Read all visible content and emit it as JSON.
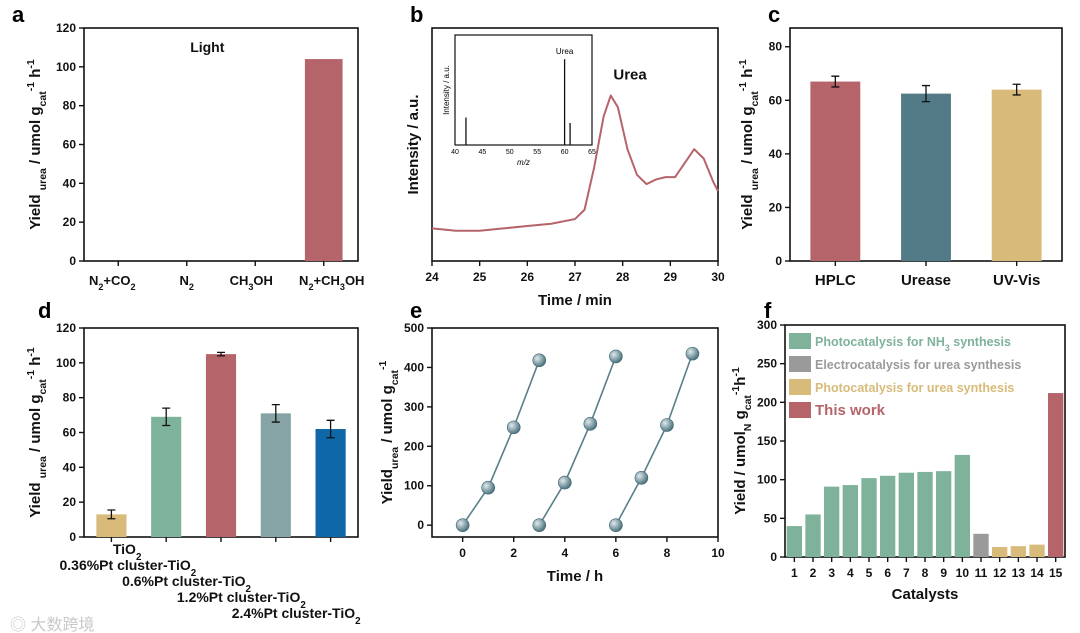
{
  "chart_data": [
    {
      "id": "a",
      "panel_label": "a",
      "type": "bar",
      "title": "Light",
      "categories": [
        [
          {
            "t": "N"
          },
          {
            "t": "2",
            "s": "sub"
          },
          {
            "t": "+CO"
          },
          {
            "t": "2",
            "s": "sub"
          }
        ],
        [
          {
            "t": "N"
          },
          {
            "t": "2",
            "s": "sub"
          }
        ],
        [
          {
            "t": "CH"
          },
          {
            "t": "3",
            "s": "sub"
          },
          {
            "t": "OH"
          }
        ],
        [
          {
            "t": "N"
          },
          {
            "t": "2",
            "s": "sub"
          },
          {
            "t": "+CH"
          },
          {
            "t": "3",
            "s": "sub"
          },
          {
            "t": "OH"
          }
        ]
      ],
      "values": [
        0,
        0,
        0,
        104
      ],
      "colors": [
        "#b5646a",
        "#b5646a",
        "#b5646a",
        "#b5646a"
      ],
      "ylim": [
        0,
        120
      ],
      "yticks": [
        0,
        20,
        40,
        60,
        80,
        100,
        120
      ],
      "ylabel": [
        {
          "t": "Yield "
        },
        {
          "t": "urea",
          "s": "sub"
        },
        {
          "t": " / umol g"
        },
        {
          "t": "cat",
          "s": "sub"
        },
        {
          "t": "-1",
          "s": "sup"
        },
        {
          "t": " h"
        },
        {
          "t": "-1",
          "s": "sup"
        }
      ]
    },
    {
      "id": "b",
      "panel_label": "b",
      "type": "line",
      "annotation": "Urea",
      "x": [
        24,
        24.5,
        25,
        25.5,
        26,
        26.5,
        27,
        27.2,
        27.4,
        27.6,
        27.75,
        27.9,
        28.1,
        28.3,
        28.5,
        28.7,
        28.9,
        29.1,
        29.3,
        29.5,
        29.7,
        29.9,
        30
      ],
      "y": [
        0.14,
        0.13,
        0.13,
        0.14,
        0.15,
        0.16,
        0.18,
        0.22,
        0.4,
        0.62,
        0.71,
        0.66,
        0.48,
        0.37,
        0.33,
        0.35,
        0.36,
        0.36,
        0.42,
        0.48,
        0.44,
        0.34,
        0.3
      ],
      "color": "#b5646a",
      "xlim": [
        24,
        30
      ],
      "xticks": [
        24,
        25,
        26,
        27,
        28,
        29,
        30
      ],
      "ylim": [
        0,
        1
      ],
      "xlabel": [
        {
          "t": "Time / min"
        }
      ],
      "ylabel": [
        {
          "t": "Intensity / a.u."
        }
      ],
      "inset": {
        "type": "bar",
        "x": [
          42,
          60,
          61
        ],
        "y": [
          0.25,
          0.78,
          0.2
        ],
        "xlim": [
          40,
          65
        ],
        "xticks": [
          40,
          45,
          50,
          55,
          60,
          65
        ],
        "annotation": "Urea",
        "xlabel": "m/z",
        "ylabel": "Intensity / a.u."
      }
    },
    {
      "id": "c",
      "panel_label": "c",
      "type": "bar",
      "categories": [
        [
          {
            "t": "HPLC"
          }
        ],
        [
          {
            "t": "Urease"
          }
        ],
        [
          {
            "t": "UV-Vis"
          }
        ]
      ],
      "values": [
        67,
        62.5,
        64
      ],
      "errors": [
        2,
        3,
        2
      ],
      "colors": [
        "#b5646a",
        "#537a87",
        "#d8bb7a"
      ],
      "ylim": [
        0,
        87
      ],
      "yticks": [
        0,
        20,
        40,
        60,
        80
      ],
      "ylabel": [
        {
          "t": "Yield "
        },
        {
          "t": "urea",
          "s": "sub"
        },
        {
          "t": " / umol g"
        },
        {
          "t": "cat",
          "s": "sub"
        },
        {
          "t": "-1",
          "s": "sup"
        },
        {
          "t": " h"
        },
        {
          "t": "-1",
          "s": "sup"
        }
      ]
    },
    {
      "id": "d",
      "panel_label": "d",
      "type": "bar",
      "categories": [
        [
          {
            "t": "TiO"
          },
          {
            "t": "2",
            "s": "sub"
          }
        ],
        [
          {
            "t": "0.36%Pt cluster-TiO"
          },
          {
            "t": "2",
            "s": "sub"
          }
        ],
        [
          {
            "t": "0.6%Pt cluster-TiO"
          },
          {
            "t": "2",
            "s": "sub"
          }
        ],
        [
          {
            "t": "1.2%Pt cluster-TiO"
          },
          {
            "t": "2",
            "s": "sub"
          }
        ],
        [
          {
            "t": "2.4%Pt cluster-TiO"
          },
          {
            "t": "2",
            "s": "sub"
          }
        ]
      ],
      "values": [
        13,
        69,
        105,
        71,
        62
      ],
      "errors": [
        2.5,
        5,
        1,
        5,
        5
      ],
      "colors": [
        "#d8bb7a",
        "#7fb29a",
        "#b5646a",
        "#86a3a6",
        "#0e67a6"
      ],
      "ylim": [
        0,
        120
      ],
      "yticks": [
        0,
        20,
        40,
        60,
        80,
        100,
        120
      ],
      "ylabel": [
        {
          "t": "Yield "
        },
        {
          "t": "urea",
          "s": "sub"
        },
        {
          "t": " / umol g"
        },
        {
          "t": "cat",
          "s": "sub"
        },
        {
          "t": "-1",
          "s": "sup"
        },
        {
          "t": " h"
        },
        {
          "t": "-1",
          "s": "sup"
        }
      ]
    },
    {
      "id": "e",
      "panel_label": "e",
      "type": "scatter-line",
      "series": [
        {
          "x": [
            0,
            1,
            2,
            3
          ],
          "y": [
            0,
            95,
            248,
            418
          ]
        },
        {
          "x": [
            3,
            4,
            5,
            6
          ],
          "y": [
            0,
            108,
            257,
            428
          ]
        },
        {
          "x": [
            6,
            7,
            8,
            9
          ],
          "y": [
            0,
            120,
            254,
            435
          ]
        }
      ],
      "color": "#5b7f88",
      "xlim": [
        -1.2,
        10
      ],
      "xticks": [
        0,
        2,
        4,
        6,
        8,
        10
      ],
      "ylim": [
        -30,
        500
      ],
      "yticks": [
        0,
        100,
        200,
        300,
        400,
        500
      ],
      "xlabel": [
        {
          "t": "Time / h"
        }
      ],
      "ylabel": [
        {
          "t": "Yield"
        },
        {
          "t": "urea",
          "s": "sub"
        },
        {
          "t": " / umol g"
        },
        {
          "t": "cat",
          "s": "sub"
        },
        {
          "t": "-1",
          "s": "sup"
        }
      ]
    },
    {
      "id": "f",
      "panel_label": "f",
      "type": "bar",
      "categories": [
        [
          {
            "t": "1"
          }
        ],
        [
          {
            "t": "2"
          }
        ],
        [
          {
            "t": "3"
          }
        ],
        [
          {
            "t": "4"
          }
        ],
        [
          {
            "t": "5"
          }
        ],
        [
          {
            "t": "6"
          }
        ],
        [
          {
            "t": "7"
          }
        ],
        [
          {
            "t": "8"
          }
        ],
        [
          {
            "t": "9"
          }
        ],
        [
          {
            "t": "10"
          }
        ],
        [
          {
            "t": "11"
          }
        ],
        [
          {
            "t": "12"
          }
        ],
        [
          {
            "t": "13"
          }
        ],
        [
          {
            "t": "14"
          }
        ],
        [
          {
            "t": "15"
          }
        ]
      ],
      "values": [
        40,
        55,
        91,
        93,
        102,
        105,
        109,
        110,
        111,
        132,
        30,
        13,
        14,
        16,
        212
      ],
      "colors": [
        "#7fb29a",
        "#7fb29a",
        "#7fb29a",
        "#7fb29a",
        "#7fb29a",
        "#7fb29a",
        "#7fb29a",
        "#7fb29a",
        "#7fb29a",
        "#7fb29a",
        "#9a9a9a",
        "#d8bb7a",
        "#d8bb7a",
        "#d8bb7a",
        "#b5646a"
      ],
      "ylim": [
        0,
        300
      ],
      "yticks": [
        0,
        50,
        100,
        150,
        200,
        250,
        300
      ],
      "xlabel": [
        {
          "t": "Catalysts"
        }
      ],
      "ylabel": [
        {
          "t": "Yield / umol"
        },
        {
          "t": "N",
          "s": "sub"
        },
        {
          "t": " g"
        },
        {
          "t": "cat",
          "s": "sub"
        },
        {
          "t": "-1",
          "s": "sup"
        },
        {
          "t": "h"
        },
        {
          "t": "-1",
          "s": "sup"
        }
      ],
      "legend": {
        "placement": "top-left",
        "entries": [
          {
            "label": [
              {
                "t": "Photocatalysis for NH"
              },
              {
                "t": "3",
                "s": "sub"
              },
              {
                "t": " synthesis"
              }
            ],
            "color": "#7fb29a"
          },
          {
            "label": [
              {
                "t": "Electrocatalysis for urea synthesis"
              }
            ],
            "color": "#9a9a9a"
          },
          {
            "label": [
              {
                "t": "Photocatalysis for urea synthesis"
              }
            ],
            "color": "#d8bb7a"
          },
          {
            "label": [
              {
                "t": "This work"
              }
            ],
            "color": "#b5646a"
          }
        ]
      }
    }
  ],
  "watermark": "大数跨境"
}
